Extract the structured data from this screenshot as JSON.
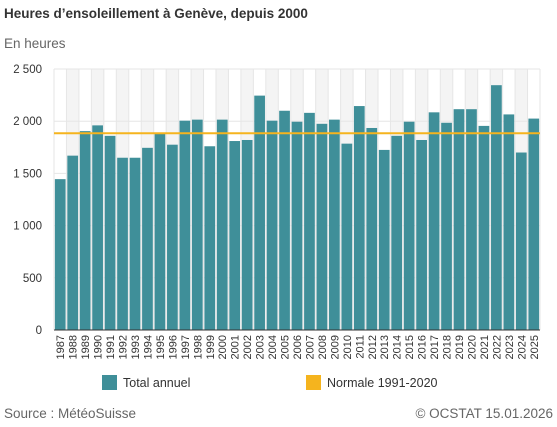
{
  "header": {
    "title": "Heures d’ensoleillement à Genève, depuis 2000",
    "unit_label": "En heures"
  },
  "footer": {
    "source": "Source : MétéoSuisse",
    "credit": "© OCSTAT 15.01.2026"
  },
  "colors": {
    "bar": "#3f8f99",
    "normal_line": "#f5b41e",
    "grid": "#e6e6e6",
    "band": "#f4f4f4"
  },
  "chart_data": {
    "type": "bar",
    "categories": [
      "1987",
      "1988",
      "1989",
      "1990",
      "1991",
      "1992",
      "1993",
      "1994",
      "1995",
      "1996",
      "1997",
      "1998",
      "1999",
      "2000",
      "2001",
      "2002",
      "2003",
      "2004",
      "2005",
      "2006",
      "2007",
      "2008",
      "2009",
      "2010",
      "2011",
      "2012",
      "2013",
      "2014",
      "2015",
      "2016",
      "2017",
      "2018",
      "2019",
      "2020",
      "2021",
      "2022",
      "2023",
      "2024",
      "2025"
    ],
    "series": [
      {
        "name": "Total annuel",
        "values": [
          1445,
          1670,
          1905,
          1960,
          1860,
          1650,
          1650,
          1745,
          1880,
          1775,
          2005,
          2015,
          1760,
          2015,
          1810,
          1820,
          2245,
          2005,
          2100,
          1995,
          2080,
          1975,
          2015,
          1785,
          2145,
          1935,
          1725,
          1860,
          1995,
          1820,
          2085,
          1985,
          2115,
          2115,
          1955,
          2345,
          2065,
          1700,
          2025
        ]
      }
    ],
    "reference_line": {
      "name": "Normale 1991-2020",
      "value": 1885
    },
    "yticks": [
      "0",
      "500",
      "1 000",
      "1 500",
      "2 000",
      "2 500"
    ],
    "ylim": [
      0,
      2500
    ],
    "grid": true,
    "legend_position": "bottom"
  }
}
